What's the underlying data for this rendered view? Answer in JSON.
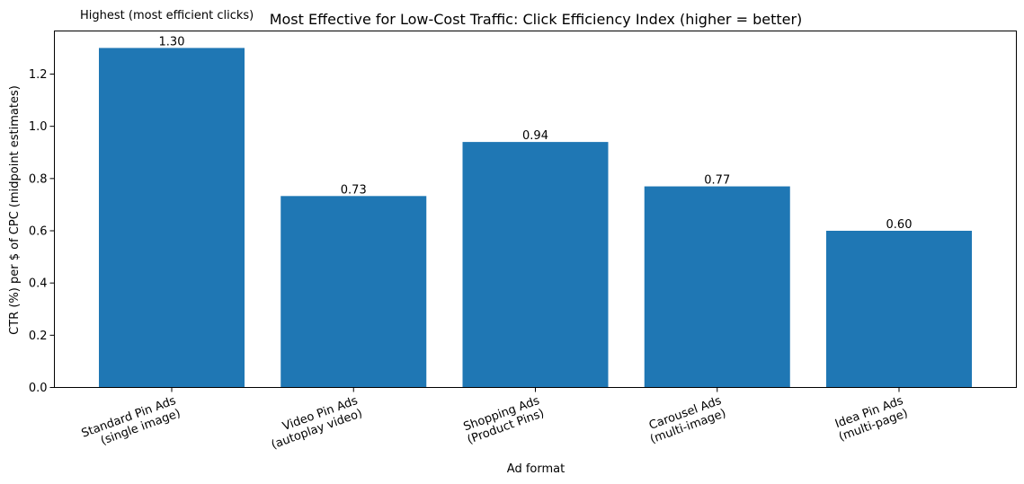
{
  "chart_data": {
    "type": "bar",
    "title": "Most Effective for Low-Cost Traffic: Click Efficiency Index (higher = better)",
    "annotation": "Highest (most efficient clicks)",
    "xlabel": "Ad format",
    "ylabel": "CTR (%) per $ of CPC (midpoint estimates)",
    "ylim": [
      0,
      1.365
    ],
    "yticks": [
      "0.0",
      "0.2",
      "0.4",
      "0.6",
      "0.8",
      "1.0",
      "1.2"
    ],
    "grid": false,
    "categories": [
      [
        "Standard Pin Ads",
        "(single image)"
      ],
      [
        "Video Pin Ads",
        "(autoplay video)"
      ],
      [
        "Shopping Ads",
        "(Product Pins)"
      ],
      [
        "Carousel Ads",
        "(multi-image)"
      ],
      [
        "Idea Pin Ads",
        "(multi-page)"
      ]
    ],
    "values": [
      1.3,
      0.733,
      0.94,
      0.77,
      0.6
    ],
    "value_labels": [
      "1.30",
      "0.73",
      "0.94",
      "0.77",
      "0.60"
    ],
    "bar_color": "#1f77b4"
  }
}
